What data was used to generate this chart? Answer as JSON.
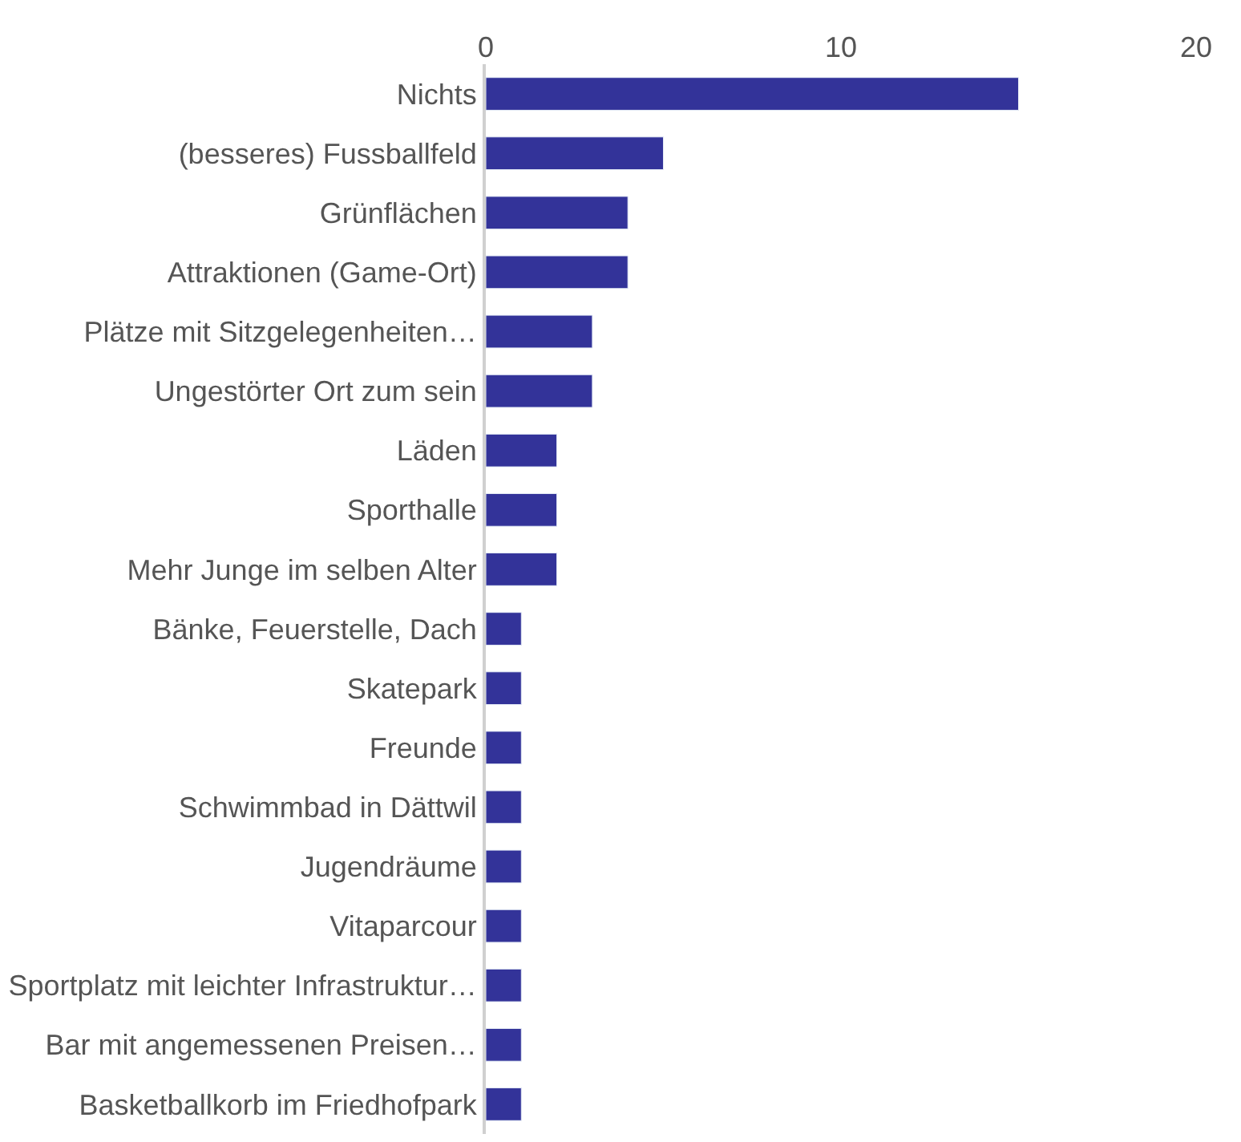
{
  "chart_data": {
    "type": "bar",
    "orientation": "horizontal",
    "categories": [
      "Nichts",
      "(besseres) Fussballfeld",
      "Grünflächen",
      "Attraktionen (Game-Ort)",
      "Plätze mit Sitzgelegenheiten…",
      "Ungestörter Ort zum sein",
      "Läden",
      "Sporthalle",
      "Mehr Junge im selben Alter",
      "Bänke, Feuerstelle, Dach",
      "Skatepark",
      "Freunde",
      "Schwimmbad in Dättwil",
      "Jugendräume",
      "Vitaparcour",
      "Sportplatz mit leichter Infrastruktur…",
      "Bar mit angemessenen Preisen…",
      "Basketballkorb im Friedhofpark"
    ],
    "values": [
      15,
      5,
      4,
      4,
      3,
      3,
      2,
      2,
      2,
      1,
      1,
      1,
      1,
      1,
      1,
      1,
      1,
      1
    ],
    "color": "#333399",
    "xlim": [
      0,
      20
    ],
    "xticks": [
      0,
      10,
      20
    ]
  }
}
